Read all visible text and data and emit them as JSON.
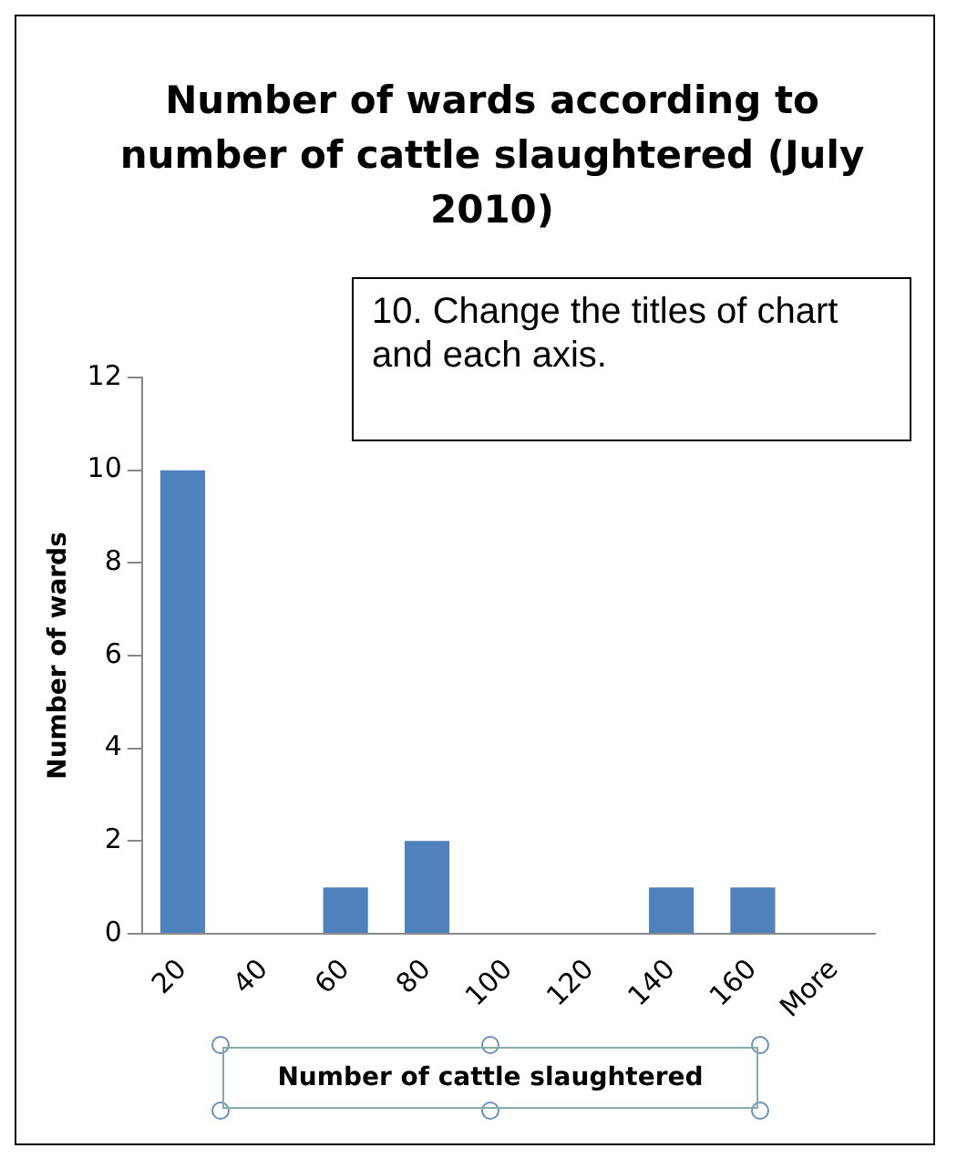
{
  "chart_data": {
    "type": "bar",
    "title": "Number of wards according to number of cattle slaughtered (July 2010)",
    "xlabel": "Number of cattle slaughtered",
    "ylabel": "Number of wards",
    "categories": [
      "20",
      "40",
      "60",
      "80",
      "100",
      "120",
      "140",
      "160",
      "More"
    ],
    "values": [
      10,
      0,
      1,
      2,
      0,
      0,
      1,
      1,
      0
    ],
    "color": "#4f81bd",
    "ylim": [
      0,
      12
    ],
    "yticks": [
      0,
      2,
      4,
      6,
      8,
      10,
      12
    ],
    "grid": false,
    "annotations": [
      "10. Change the titles of chart and each axis."
    ]
  }
}
